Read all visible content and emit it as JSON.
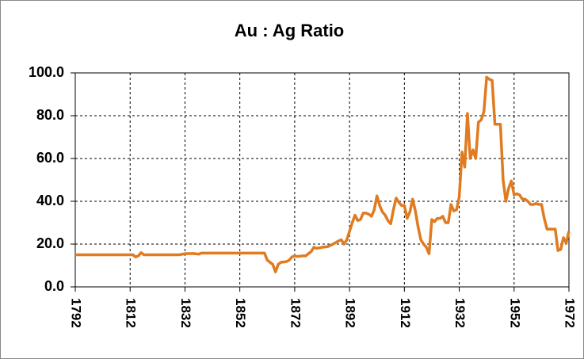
{
  "chart_data": {
    "type": "line",
    "title": "Au : Ag  Ratio",
    "x": [
      1792,
      1800,
      1810,
      1813,
      1814,
      1815,
      1816,
      1817,
      1820,
      1830,
      1832,
      1835,
      1837,
      1838,
      1850,
      1860,
      1861,
      1862,
      1864,
      1865,
      1866,
      1867,
      1869,
      1870,
      1871,
      1872,
      1873,
      1875,
      1876,
      1877,
      1878,
      1879,
      1880,
      1882,
      1884,
      1886,
      1888,
      1889,
      1890,
      1891,
      1892,
      1893,
      1894,
      1895,
      1896,
      1897,
      1898,
      1899,
      1900,
      1901,
      1902,
      1903,
      1904,
      1905,
      1906,
      1907,
      1908,
      1909,
      1910,
      1911,
      1912,
      1913,
      1914,
      1915,
      1916,
      1917,
      1918,
      1919,
      1920,
      1921,
      1922,
      1923,
      1924,
      1925,
      1926,
      1927,
      1928,
      1929,
      1930,
      1931,
      1932,
      1933,
      1934,
      1935,
      1936,
      1937,
      1938,
      1939,
      1940,
      1941,
      1942,
      1943,
      1944,
      1945,
      1946,
      1947,
      1948,
      1949,
      1950,
      1951,
      1952,
      1953,
      1954,
      1955,
      1956,
      1957,
      1958,
      1959,
      1960,
      1961,
      1962,
      1963,
      1964,
      1965,
      1966,
      1967,
      1968,
      1969,
      1970,
      1971,
      1972
    ],
    "series": [
      {
        "name": "Au : Ag Ratio",
        "color": "#e07b20",
        "values": [
          15,
          15,
          15,
          15,
          14,
          14.5,
          16,
          15,
          15,
          15,
          15.5,
          15.6,
          15.3,
          15.8,
          15.8,
          15.8,
          15.8,
          12.5,
          10.5,
          7,
          10.5,
          11.5,
          11.8,
          12.5,
          14,
          14.5,
          14.2,
          14.5,
          14.5,
          15.5,
          16.5,
          18.5,
          18,
          18.5,
          18.8,
          20,
          21.5,
          22,
          20,
          22,
          26,
          30,
          33.5,
          31,
          31.5,
          34.5,
          34.5,
          34,
          33,
          36,
          42.5,
          38,
          35,
          33.5,
          31,
          29.5,
          36,
          41.5,
          39.5,
          38,
          38,
          32,
          35,
          41,
          35.5,
          28,
          22,
          20,
          18.5,
          15.5,
          31.5,
          30.5,
          32,
          32,
          33,
          30,
          30,
          38.5,
          35.5,
          36,
          42,
          63,
          56,
          81,
          60,
          64,
          60,
          77,
          78,
          82,
          98,
          97,
          96.5,
          76,
          76,
          76,
          50,
          40,
          46,
          49.5,
          43,
          43.5,
          43,
          41,
          41,
          40,
          38.5,
          38.5,
          39,
          38.5,
          38.5,
          32,
          27,
          27,
          27,
          27,
          17,
          17.5,
          23,
          20.5,
          26
        ]
      }
    ],
    "xlim": [
      1792,
      1972
    ],
    "xticks": [
      1792,
      1812,
      1832,
      1852,
      1872,
      1892,
      1912,
      1932,
      1952,
      1972
    ],
    "ylim": [
      0,
      100
    ],
    "yticks": [
      {
        "value": 0,
        "label": "0.0"
      },
      {
        "value": 20,
        "label": "20.0"
      },
      {
        "value": 40,
        "label": "40.0"
      },
      {
        "value": 60,
        "label": "60.0"
      },
      {
        "value": 80,
        "label": "80.0"
      },
      {
        "value": 100,
        "label": "100.0"
      }
    ],
    "grid": true
  }
}
